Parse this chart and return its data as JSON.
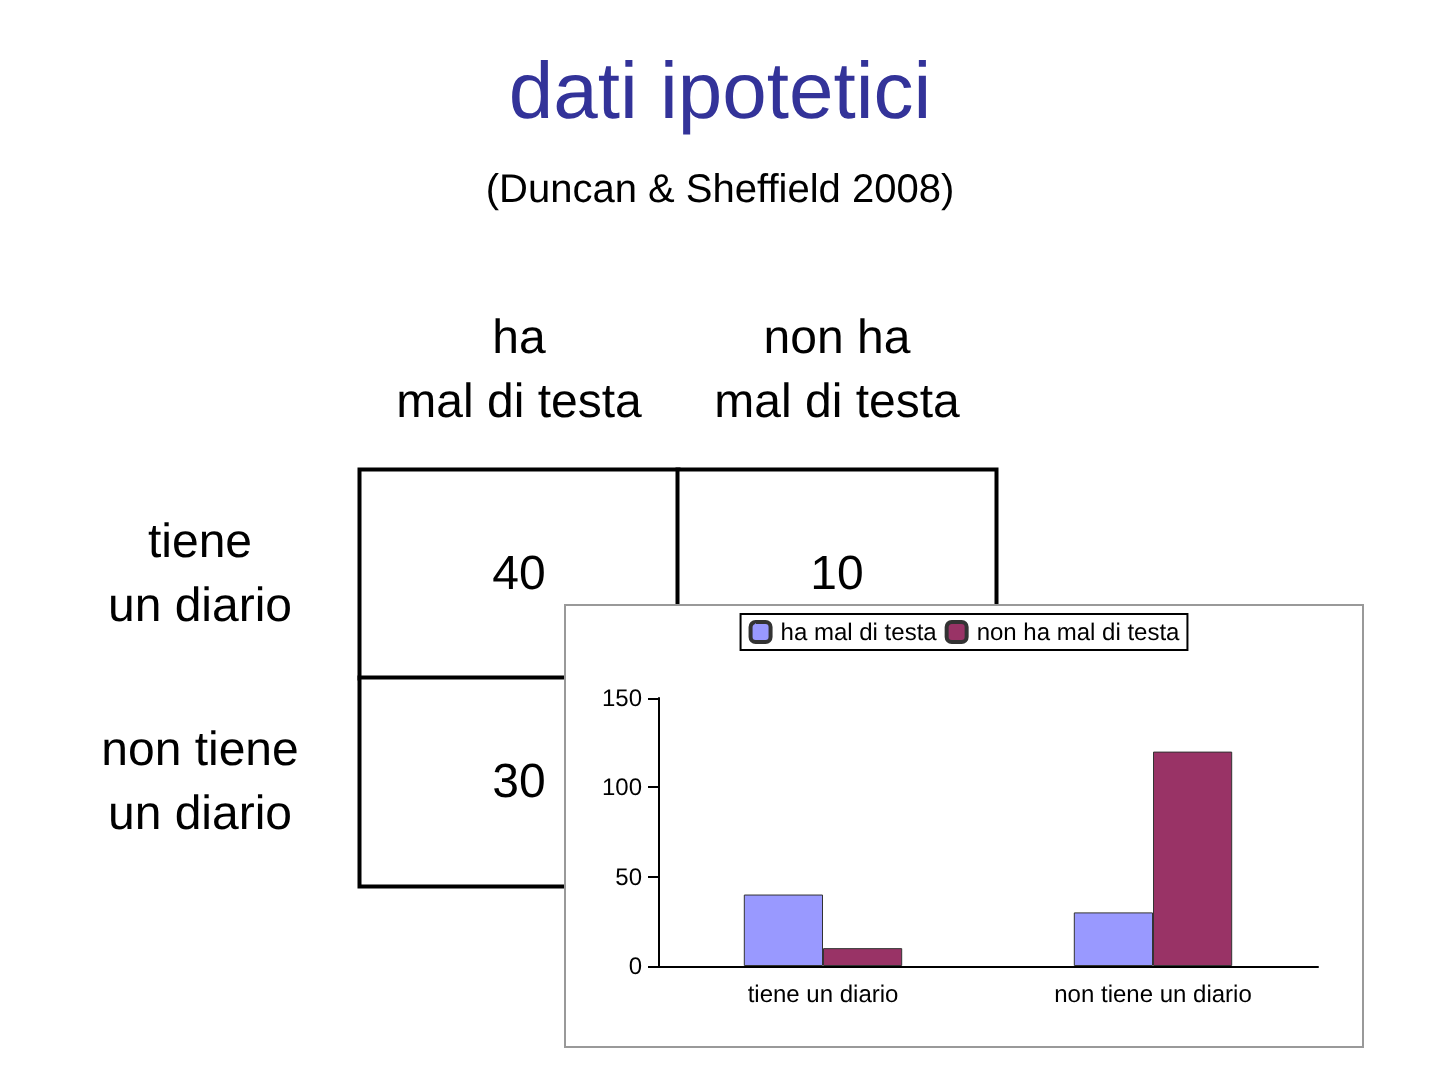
{
  "chart_data": [
    {
      "type": "heatmap",
      "title": "dati ipotetici",
      "subtitle": "(Duncan & Sheffield 2008)",
      "categories": [
        "ha mal di testa",
        "non ha mal di testa"
      ],
      "y_categories": [
        "tiene un diario",
        "non tiene un diario"
      ],
      "cells": [
        [
          40,
          10
        ],
        [
          30,
          null
        ]
      ],
      "data_labels": true
    },
    {
      "type": "bar",
      "categories": [
        "tiene un diario",
        "non tiene un diario"
      ],
      "series": [
        {
          "name": "ha mal di testa",
          "color": "#9999ff",
          "values": [
            40,
            30
          ]
        },
        {
          "name": "non ha mal di testa",
          "color": "#993366",
          "values": [
            10,
            120
          ]
        }
      ],
      "ylim": [
        0,
        150
      ],
      "yticks": [
        0,
        50,
        100,
        150
      ],
      "grid": false,
      "legend": "top"
    }
  ]
}
